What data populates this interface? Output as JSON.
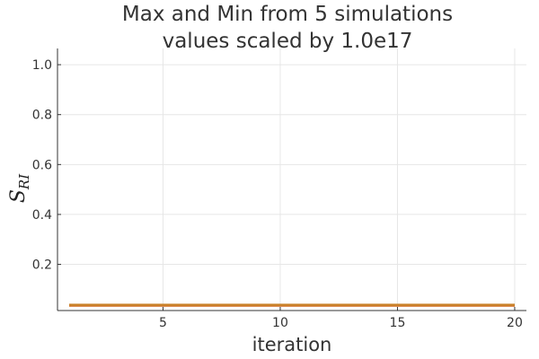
{
  "chart_data": {
    "type": "line",
    "title_lines": [
      "Max and Min from 5 simulations",
      "values scaled by 1.0e17"
    ],
    "xlabel": "iteration",
    "ylabel": {
      "symbol": "S",
      "subscript": "RI"
    },
    "xlim": [
      0.5,
      20.5
    ],
    "ylim": [
      0.015,
      1.065
    ],
    "xticks": [
      5,
      10,
      15,
      20
    ],
    "yticks": [
      0.2,
      0.4,
      0.6,
      0.8,
      1.0
    ],
    "ytick_labels": [
      "0.2",
      "0.4",
      "0.6",
      "0.8",
      "1.0"
    ],
    "grid": true,
    "legend": false,
    "series": [
      {
        "color": "#e26f46",
        "x": [
          1,
          2,
          3,
          4,
          5,
          6,
          7,
          8,
          9,
          10,
          11,
          12,
          13,
          14,
          15,
          16,
          17,
          18,
          19,
          20
        ],
        "values": [
          0.035,
          0.035,
          0.035,
          0.035,
          0.035,
          0.035,
          0.035,
          0.035,
          0.035,
          0.035,
          0.035,
          0.035,
          0.035,
          0.035,
          0.035,
          0.035,
          0.035,
          0.035,
          0.035,
          0.035
        ]
      },
      {
        "color": "#c68125",
        "x": [
          1,
          2,
          3,
          4,
          5,
          6,
          7,
          8,
          9,
          10,
          11,
          12,
          13,
          14,
          15,
          16,
          17,
          18,
          19,
          20
        ],
        "values": [
          0.037,
          0.037,
          0.037,
          0.037,
          0.037,
          0.037,
          0.037,
          0.037,
          0.037,
          0.037,
          0.037,
          0.037,
          0.037,
          0.037,
          0.037,
          0.037,
          0.037,
          0.037,
          0.037,
          0.037
        ]
      }
    ]
  }
}
